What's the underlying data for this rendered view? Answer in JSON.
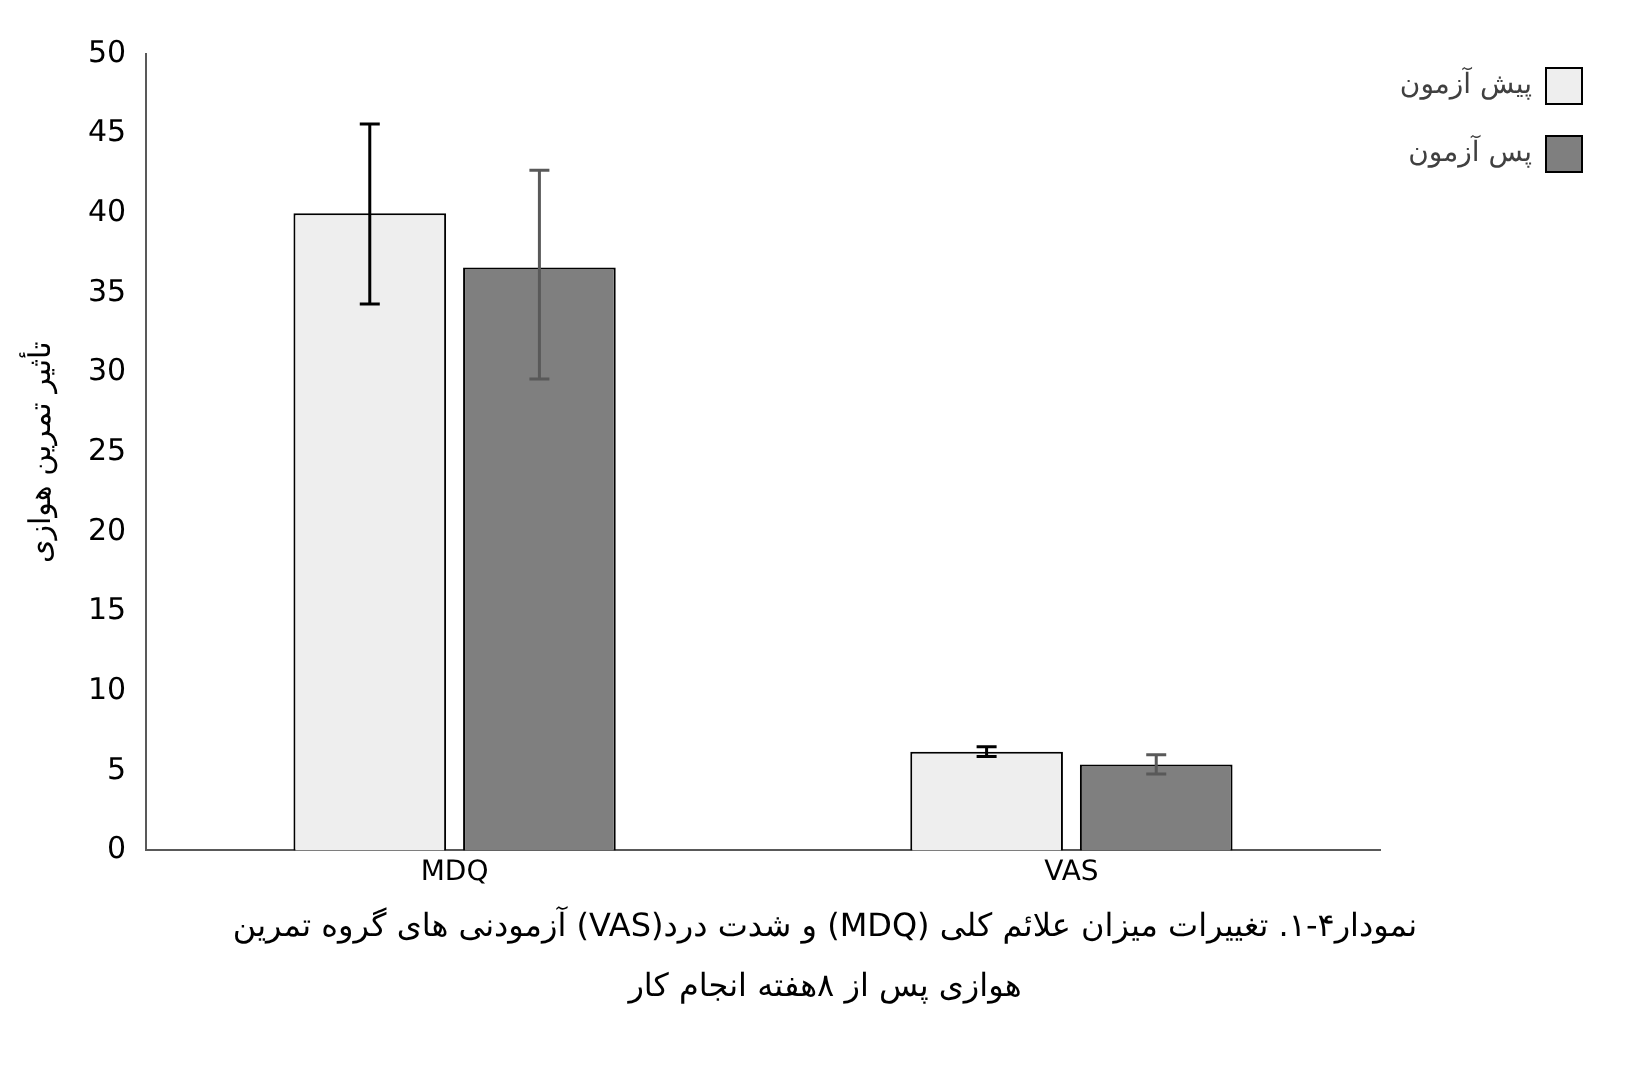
{
  "chart_data": {
    "type": "bar",
    "ylabel": "تأثیر تمرین هوازی",
    "categories": [
      "MDQ",
      "VAS"
    ],
    "series": [
      {
        "name": "پیش آزمون",
        "color": "#eeeeee",
        "values": [
          40.0,
          6.2
        ],
        "errors": [
          [
            34.3,
            45.6
          ],
          [
            5.9,
            6.5
          ]
        ]
      },
      {
        "name": "پس آزمون",
        "color": "#7f7f7f",
        "values": [
          36.6,
          5.4
        ],
        "errors": [
          [
            29.6,
            42.7
          ],
          [
            4.8,
            6.0
          ]
        ]
      }
    ],
    "ylim": [
      0,
      50
    ],
    "yticks": [
      0,
      5,
      10,
      15,
      20,
      25,
      30,
      35,
      40,
      45,
      50
    ],
    "grid": false,
    "legend": "top right",
    "annotations": [
      "نمودار۴-۱. تغییرات میزان علائم کلی (MDQ) و شدت درد(VAS) آزمودنی های گروه تمرین هوازی پس از ۸هفته انجام کار"
    ]
  }
}
